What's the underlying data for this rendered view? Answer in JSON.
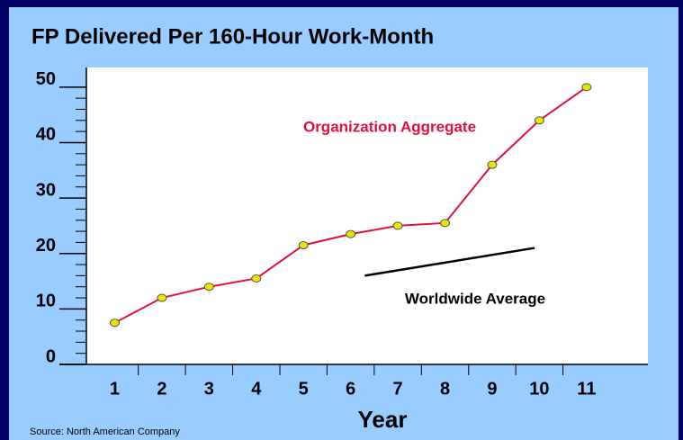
{
  "chart_data": {
    "type": "line",
    "title": "FP Delivered Per 160-Hour Work-Month",
    "x_label": "Year",
    "source": "Source: North American Company",
    "xlim": [
      0.4,
      12.3
    ],
    "xticks": [
      1,
      2,
      3,
      4,
      5,
      6,
      7,
      8,
      9,
      10,
      11
    ],
    "ylim": [
      0,
      55
    ],
    "yticks": [
      0,
      10,
      20,
      30,
      40,
      50
    ],
    "series": [
      {
        "name": "Organization Aggregate",
        "color": "#e0103c",
        "marker_color": "#e6e600",
        "x": [
          1,
          2,
          3,
          4,
          5,
          6,
          7,
          8,
          9,
          10,
          11
        ],
        "values": [
          7.5,
          12,
          14,
          15.5,
          21.5,
          23.5,
          25,
          25.5,
          36,
          44,
          50
        ]
      },
      {
        "name": "Worldwide Average",
        "color": "#000000",
        "x": [
          6.3,
          9.9
        ],
        "values": [
          16,
          21
        ]
      }
    ]
  }
}
